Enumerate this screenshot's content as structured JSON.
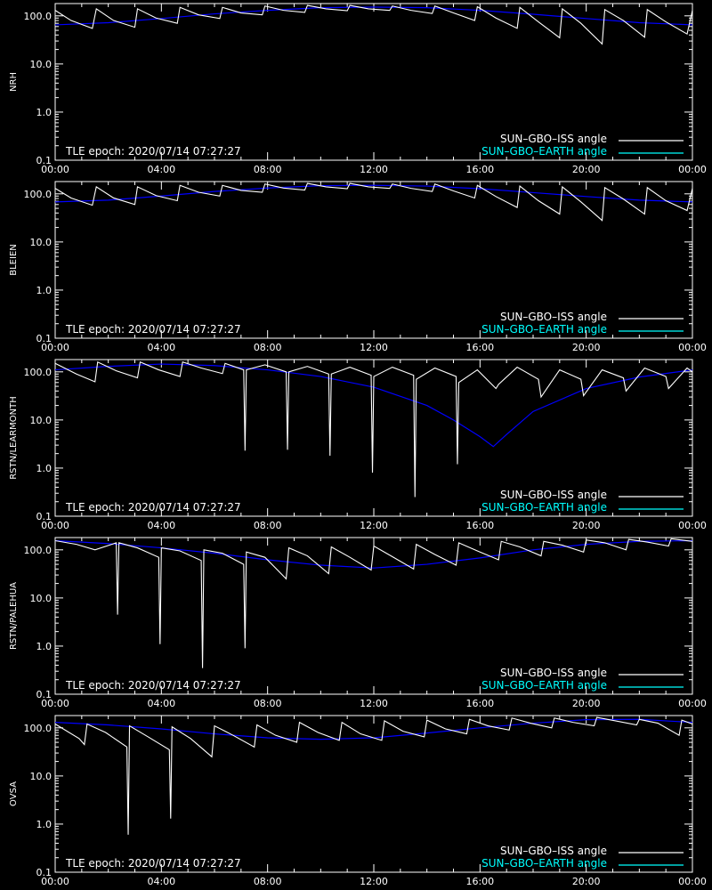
{
  "panel_labels": [
    "NRH",
    "BLEIEN",
    "RSTN/LEARMONTH",
    "RSTN/PALEHUA",
    "OVSA"
  ],
  "tle_text": "TLE epoch: 2020/07/14 07:27:27",
  "legend": {
    "iss_label": "SUN–GBO–ISS angle",
    "earth_label": "SUN–GBO–EARTH angle"
  },
  "colors": {
    "iss": "#ffffff",
    "iss_occulted": "#808080",
    "earth": "#0000ff",
    "earth_visible": "#00ffff",
    "axes": "#ffffff",
    "legend_earth_text": "#00ffff"
  },
  "chart_data": [
    {
      "type": "line",
      "title": "",
      "ylabel": "NRH",
      "xlabel": "",
      "x_ticks": [
        "00:00",
        "04:00",
        "08:00",
        "12:00",
        "16:00",
        "20:00",
        "00:00"
      ],
      "y_ticks": [
        "0.1",
        "1.0",
        "10.0",
        "100.0"
      ],
      "xlim": [
        0,
        24
      ],
      "ylim": [
        0.1,
        180
      ],
      "yscale": "log",
      "legend": "bottom-right",
      "earth": {
        "name": "SUN–GBO–EARTH angle",
        "x": [
          0,
          2,
          4,
          6,
          8,
          10,
          12,
          14,
          16,
          18,
          20,
          22,
          24
        ],
        "y": [
          65,
          72,
          88,
          110,
          130,
          148,
          152,
          148,
          130,
          108,
          88,
          72,
          65
        ]
      },
      "iss": {
        "name": "SUN–GBO–ISS angle",
        "x": [
          0,
          0.6,
          1.4,
          1.55,
          2.2,
          3,
          3.1,
          3.8,
          4.6,
          4.7,
          5.4,
          6.2,
          6.3,
          7,
          7.8,
          7.9,
          8.6,
          9.4,
          9.5,
          10.2,
          11,
          11.1,
          11.8,
          12.6,
          12.7,
          13.4,
          14.2,
          14.3,
          15,
          15.8,
          15.9,
          16.6,
          17.4,
          17.5,
          18.2,
          19,
          19.1,
          19.8,
          20.6,
          20.7,
          21.4,
          22.2,
          22.3,
          23,
          23.8,
          24
        ],
        "y": [
          130,
          80,
          55,
          140,
          80,
          58,
          140,
          90,
          70,
          150,
          105,
          88,
          150,
          115,
          105,
          160,
          130,
          118,
          165,
          140,
          128,
          165,
          140,
          130,
          160,
          130,
          112,
          160,
          115,
          80,
          155,
          90,
          55,
          150,
          75,
          35,
          140,
          70,
          26,
          135,
          80,
          36,
          135,
          75,
          42,
          130
        ]
      }
    },
    {
      "type": "line",
      "title": "",
      "ylabel": "BLEIEN",
      "xlabel": "",
      "x_ticks": [
        "00:00",
        "04:00",
        "08:00",
        "12:00",
        "16:00",
        "20:00",
        "00:00"
      ],
      "y_ticks": [
        "0.1",
        "1.0",
        "10.0",
        "100.0"
      ],
      "xlim": [
        0,
        24
      ],
      "ylim": [
        0.1,
        180
      ],
      "yscale": "log",
      "legend": "bottom-right",
      "earth": {
        "name": "SUN–GBO–EARTH angle",
        "x": [
          0,
          2,
          4,
          6,
          8,
          10,
          12,
          14,
          16,
          18,
          20,
          22,
          24
        ],
        "y": [
          68,
          74,
          90,
          112,
          132,
          148,
          150,
          145,
          128,
          106,
          88,
          74,
          68
        ]
      },
      "iss": {
        "name": "SUN–GBO–ISS angle",
        "x": [
          0,
          0.6,
          1.4,
          1.55,
          2.2,
          3,
          3.1,
          3.8,
          4.6,
          4.7,
          5.4,
          6.2,
          6.3,
          7,
          7.8,
          7.9,
          8.6,
          9.4,
          9.5,
          10.2,
          11,
          11.1,
          11.8,
          12.6,
          12.7,
          13.4,
          14.2,
          14.3,
          15,
          15.8,
          15.9,
          16.6,
          17.4,
          17.5,
          18.2,
          19,
          19.1,
          19.8,
          20.6,
          20.7,
          21.4,
          22.2,
          22.3,
          23,
          23.8,
          24
        ],
        "y": [
          130,
          82,
          58,
          140,
          82,
          60,
          140,
          92,
          72,
          150,
          108,
          90,
          150,
          118,
          108,
          160,
          132,
          120,
          165,
          140,
          128,
          165,
          140,
          130,
          160,
          130,
          112,
          160,
          115,
          82,
          150,
          88,
          52,
          145,
          72,
          38,
          140,
          68,
          28,
          135,
          78,
          38,
          135,
          72,
          45,
          130
        ]
      }
    },
    {
      "type": "line",
      "title": "",
      "ylabel": "RSTN/LEARMONTH",
      "xlabel": "",
      "x_ticks": [
        "00:00",
        "04:00",
        "08:00",
        "12:00",
        "16:00",
        "20:00",
        "00:00"
      ],
      "y_ticks": [
        "0.1",
        "1.0",
        "10.0",
        "100.0"
      ],
      "xlim": [
        0,
        24
      ],
      "ylim": [
        0.1,
        180
      ],
      "yscale": "log",
      "legend": "bottom-right",
      "earth": {
        "name": "SUN–GBO–EARTH angle",
        "x": [
          0,
          2,
          4,
          6,
          8,
          10,
          12,
          14,
          15,
          16,
          16.5,
          17,
          18,
          20,
          22,
          24
        ],
        "y": [
          110,
          130,
          145,
          135,
          110,
          80,
          48,
          20,
          10,
          4.5,
          2.8,
          5,
          15,
          45,
          78,
          110
        ]
      },
      "iss": {
        "name": "SUN–GBO–ISS angle",
        "x": [
          0,
          0.8,
          1.5,
          1.6,
          2.3,
          3.1,
          3.2,
          3.9,
          4.7,
          4.8,
          5.5,
          6.3,
          6.4,
          7.1,
          7.15,
          7.2,
          7.9,
          8.7,
          8.75,
          8.8,
          9.5,
          10.3,
          10.35,
          10.4,
          11.1,
          11.9,
          11.95,
          12,
          12.7,
          13.5,
          13.55,
          13.6,
          14.3,
          15.1,
          15.15,
          15.2,
          15.9,
          16.6,
          16.7,
          17.4,
          18.2,
          18.3,
          19,
          19.8,
          19.9,
          20.6,
          21.4,
          21.5,
          22.2,
          23,
          23.1,
          23.8,
          24
        ],
        "y": [
          150,
          90,
          62,
          160,
          105,
          75,
          160,
          110,
          80,
          160,
          120,
          92,
          150,
          110,
          2.3,
          110,
          140,
          100,
          2.4,
          100,
          130,
          90,
          1.8,
          90,
          125,
          85,
          0.8,
          80,
          125,
          85,
          0.25,
          70,
          120,
          80,
          1.2,
          60,
          110,
          45,
          55,
          125,
          70,
          30,
          110,
          70,
          32,
          110,
          75,
          40,
          120,
          80,
          45,
          120,
          100
        ]
      }
    },
    {
      "type": "line",
      "title": "",
      "ylabel": "RSTN/PALEHUA",
      "xlabel": "",
      "x_ticks": [
        "00:00",
        "04:00",
        "08:00",
        "12:00",
        "16:00",
        "20:00",
        "00:00"
      ],
      "y_ticks": [
        "0.1",
        "1.0",
        "10.0",
        "100.0"
      ],
      "xlim": [
        0,
        24
      ],
      "ylim": [
        0.1,
        180
      ],
      "yscale": "log",
      "legend": "bottom-right",
      "earth": {
        "name": "SUN–GBO–EARTH angle",
        "x": [
          0,
          2,
          4,
          6,
          8,
          10,
          12,
          14,
          16,
          18,
          20,
          22,
          24
        ],
        "y": [
          155,
          135,
          110,
          85,
          62,
          48,
          42,
          50,
          68,
          100,
          130,
          150,
          155
        ]
      },
      "iss": {
        "name": "SUN–GBO–ISS angle",
        "x": [
          0,
          0.8,
          1.5,
          2.3,
          2.35,
          2.4,
          3.1,
          3.9,
          3.95,
          4,
          4.7,
          5.5,
          5.55,
          5.6,
          6.3,
          7.1,
          7.15,
          7.2,
          7.9,
          8.7,
          8.8,
          9.5,
          10.3,
          10.4,
          11.1,
          11.9,
          12,
          12.7,
          13.5,
          13.6,
          14.3,
          15.1,
          15.2,
          15.9,
          16.7,
          16.8,
          17.5,
          18.3,
          18.4,
          19.1,
          19.9,
          20,
          20.7,
          21.5,
          21.6,
          22.3,
          23.1,
          23.2,
          24
        ],
        "y": [
          155,
          130,
          100,
          140,
          4.5,
          140,
          110,
          70,
          1.1,
          110,
          95,
          60,
          0.35,
          100,
          85,
          50,
          0.9,
          90,
          70,
          25,
          110,
          75,
          32,
          115,
          70,
          38,
          120,
          72,
          40,
          130,
          80,
          48,
          140,
          95,
          62,
          150,
          115,
          75,
          150,
          125,
          90,
          160,
          140,
          100,
          165,
          145,
          120,
          170,
          150
        ]
      }
    },
    {
      "type": "line",
      "title": "",
      "ylabel": "OVSA",
      "xlabel": "",
      "x_ticks": [
        "00:00",
        "04:00",
        "08:00",
        "12:00",
        "16:00",
        "20:00",
        "00:00"
      ],
      "y_ticks": [
        "0.1",
        "1.0",
        "10.0",
        "100.0"
      ],
      "xlim": [
        0,
        24
      ],
      "ylim": [
        0.1,
        180
      ],
      "yscale": "log",
      "legend": "bottom-right",
      "earth": {
        "name": "SUN–GBO–EARTH angle",
        "x": [
          0,
          2,
          4,
          6,
          8,
          10,
          12,
          14,
          16,
          18,
          20,
          22,
          24
        ],
        "y": [
          130,
          115,
          95,
          75,
          62,
          58,
          62,
          78,
          100,
          125,
          148,
          150,
          130
        ]
      },
      "iss": {
        "name": "SUN–GBO–ISS angle",
        "x": [
          0,
          0.9,
          1.1,
          1.2,
          1.9,
          2.7,
          2.75,
          2.8,
          3.5,
          4.3,
          4.35,
          4.4,
          5.1,
          5.9,
          6,
          6.7,
          7.5,
          7.6,
          8.3,
          9.1,
          9.2,
          9.9,
          10.7,
          10.8,
          11.5,
          12.3,
          12.4,
          13.1,
          13.9,
          14,
          14.7,
          15.5,
          15.6,
          16.3,
          17.1,
          17.2,
          17.9,
          18.7,
          18.8,
          19.5,
          20.3,
          20.4,
          21.1,
          21.9,
          22,
          22.7,
          23.5,
          23.6,
          24
        ],
        "y": [
          120,
          60,
          45,
          120,
          80,
          40,
          0.6,
          110,
          65,
          35,
          1.3,
          105,
          60,
          25,
          110,
          70,
          40,
          115,
          70,
          50,
          130,
          80,
          55,
          130,
          75,
          55,
          140,
          85,
          65,
          145,
          95,
          75,
          150,
          110,
          90,
          160,
          125,
          100,
          160,
          130,
          110,
          165,
          140,
          115,
          150,
          125,
          70,
          145,
          120
        ]
      }
    }
  ]
}
